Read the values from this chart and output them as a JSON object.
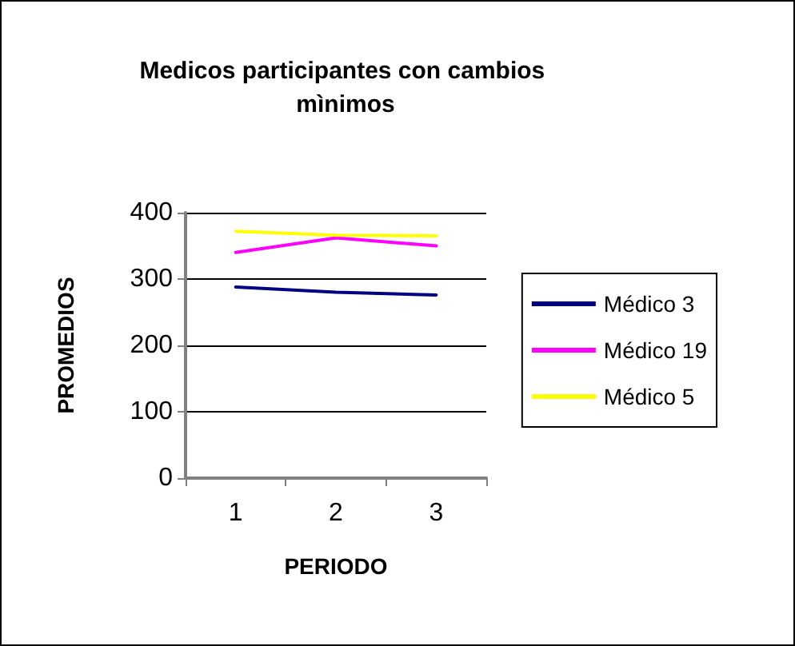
{
  "chart_data": {
    "type": "line",
    "title": "Medicos participantes con cambios mìnimos",
    "xlabel": "PERIODO",
    "ylabel": "PROMEDIOS",
    "categories": [
      "1",
      "2",
      "3"
    ],
    "series": [
      {
        "name": "Médico 3",
        "color": "#000080",
        "values": [
          288,
          280,
          276
        ]
      },
      {
        "name": "Médico 19",
        "color": "#ff00ff",
        "values": [
          340,
          362,
          350
        ]
      },
      {
        "name": "Médico 5",
        "color": "#ffff00",
        "values": [
          372,
          366,
          365
        ]
      }
    ],
    "ylim": [
      0,
      400
    ],
    "yticks": [
      0,
      100,
      200,
      300,
      400
    ],
    "grid": "y",
    "legend": "right",
    "marker": "none",
    "line_style": "solid"
  }
}
